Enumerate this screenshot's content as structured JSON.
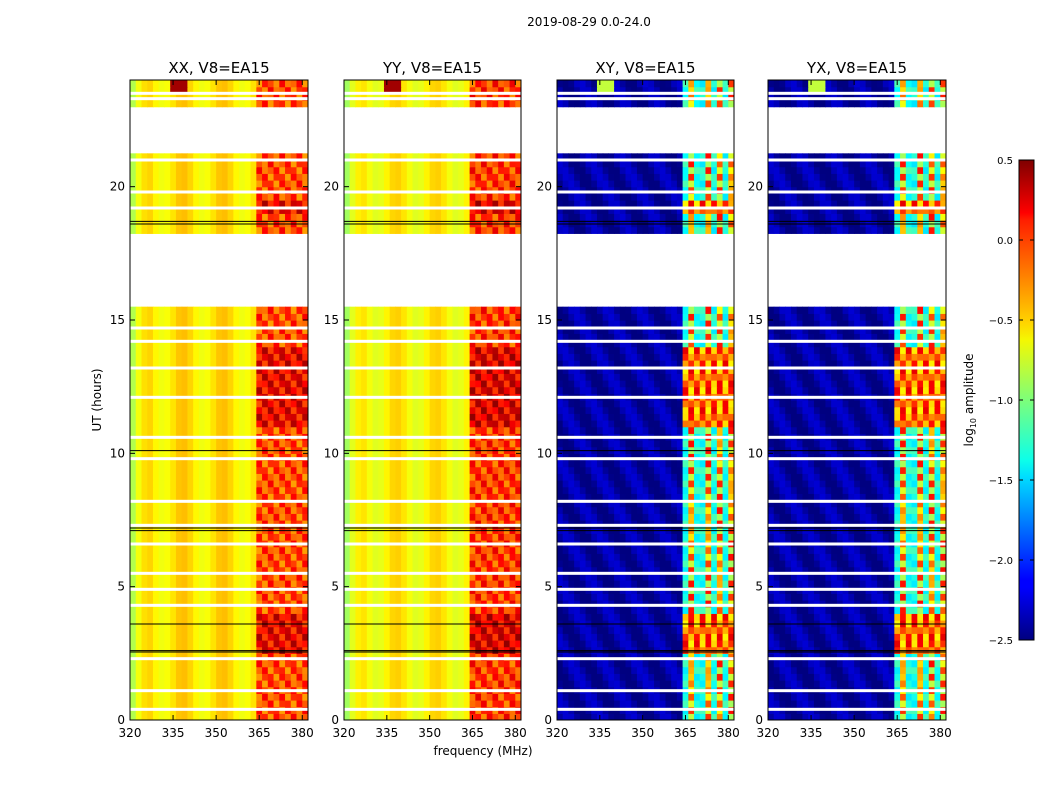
{
  "figure": {
    "suptitle": "2019-08-29 0.0-24.0",
    "xlabel": "frequency (MHz)",
    "ylabel": "UT (hours)"
  },
  "chart_data": {
    "type": "heatmap",
    "x_range": [
      320,
      382
    ],
    "x_ticks": [
      320,
      335,
      350,
      365,
      380
    ],
    "y_range": [
      0,
      24
    ],
    "y_ticks": [
      0,
      5,
      10,
      15,
      20
    ],
    "colorbar": {
      "label": "log10 amplitude",
      "label_main": "log",
      "label_sub": "10",
      "label_rest": " amplitude",
      "range": [
        -2.5,
        0.5
      ],
      "ticks": [
        0.5,
        0.0,
        -0.5,
        -1.0,
        -1.5,
        -2.0,
        -2.5
      ],
      "tick_labels": [
        "0.5",
        "0.0",
        "−0.5",
        "−1.0",
        "−1.5",
        "−2.0",
        "−2.5"
      ],
      "colormap": "jet"
    },
    "data_gaps_hours": [
      [
        18.0,
        18.3
      ],
      [
        15.4,
        17.9
      ],
      [
        21.3,
        23.0
      ]
    ],
    "panels": [
      {
        "title": "XX, V8=EA15",
        "kind": "parallel",
        "baseline_log_amp": -0.5,
        "rfi_band_mhz": [
          364,
          380
        ],
        "rfi_log_amp": 0.05
      },
      {
        "title": "YY, V8=EA15",
        "kind": "parallel",
        "baseline_log_amp": -0.55,
        "rfi_band_mhz": [
          364,
          380
        ],
        "rfi_log_amp": 0.1
      },
      {
        "title": "XY, V8=EA15",
        "kind": "cross",
        "baseline_log_amp": -2.4,
        "rfi_band_mhz": [
          364,
          380
        ],
        "rfi_log_amp": -1.2
      },
      {
        "title": "YX, V8=EA15",
        "kind": "cross",
        "baseline_log_amp": -2.4,
        "rfi_band_mhz": [
          364,
          380
        ],
        "rfi_log_amp": -1.2
      }
    ]
  }
}
